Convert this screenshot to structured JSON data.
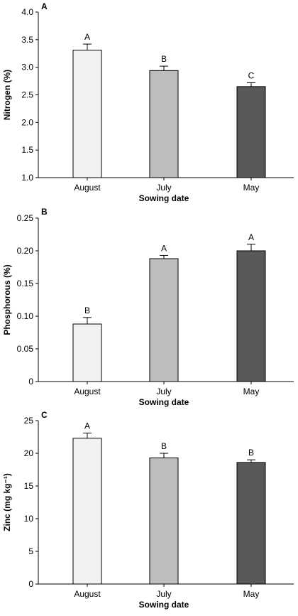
{
  "chart_data": [
    {
      "type": "bar",
      "panel": "A",
      "categories": [
        "August",
        "July",
        "May"
      ],
      "values": [
        3.31,
        2.94,
        2.65
      ],
      "errors": [
        0.11,
        0.08,
        0.07
      ],
      "letters": [
        "A",
        "B",
        "C"
      ],
      "colors": [
        "#f2f2f2",
        "#bdbdbd",
        "#595959"
      ],
      "xlabel": "Sowing date",
      "ylabel": "Nitrogen (%)",
      "ylim": [
        1.0,
        4.0
      ],
      "yticks": [
        "1.0",
        "1.5",
        "2.0",
        "2.5",
        "3.0",
        "3.5",
        "4.0"
      ]
    },
    {
      "type": "bar",
      "panel": "B",
      "categories": [
        "August",
        "July",
        "May"
      ],
      "values": [
        0.088,
        0.188,
        0.2
      ],
      "errors": [
        0.01,
        0.005,
        0.01
      ],
      "letters": [
        "B",
        "A",
        "A"
      ],
      "colors": [
        "#f2f2f2",
        "#bdbdbd",
        "#595959"
      ],
      "xlabel": "Sowing date",
      "ylabel": "Phosphorous (%)",
      "ylim": [
        0,
        0.25
      ],
      "yticks": [
        "0",
        "0.05",
        "0.10",
        "0.15",
        "0.20",
        "0.25"
      ]
    },
    {
      "type": "bar",
      "panel": "C",
      "categories": [
        "August",
        "July",
        "May"
      ],
      "values": [
        22.3,
        19.3,
        18.6
      ],
      "errors": [
        0.8,
        0.7,
        0.4
      ],
      "letters": [
        "A",
        "B",
        "B"
      ],
      "colors": [
        "#f2f2f2",
        "#bdbdbd",
        "#595959"
      ],
      "xlabel": "Sowing date",
      "ylabel": "Zinc (mg kg⁻¹)",
      "ylim": [
        0,
        25
      ],
      "yticks": [
        "0",
        "5",
        "10",
        "15",
        "20",
        "25"
      ]
    }
  ]
}
